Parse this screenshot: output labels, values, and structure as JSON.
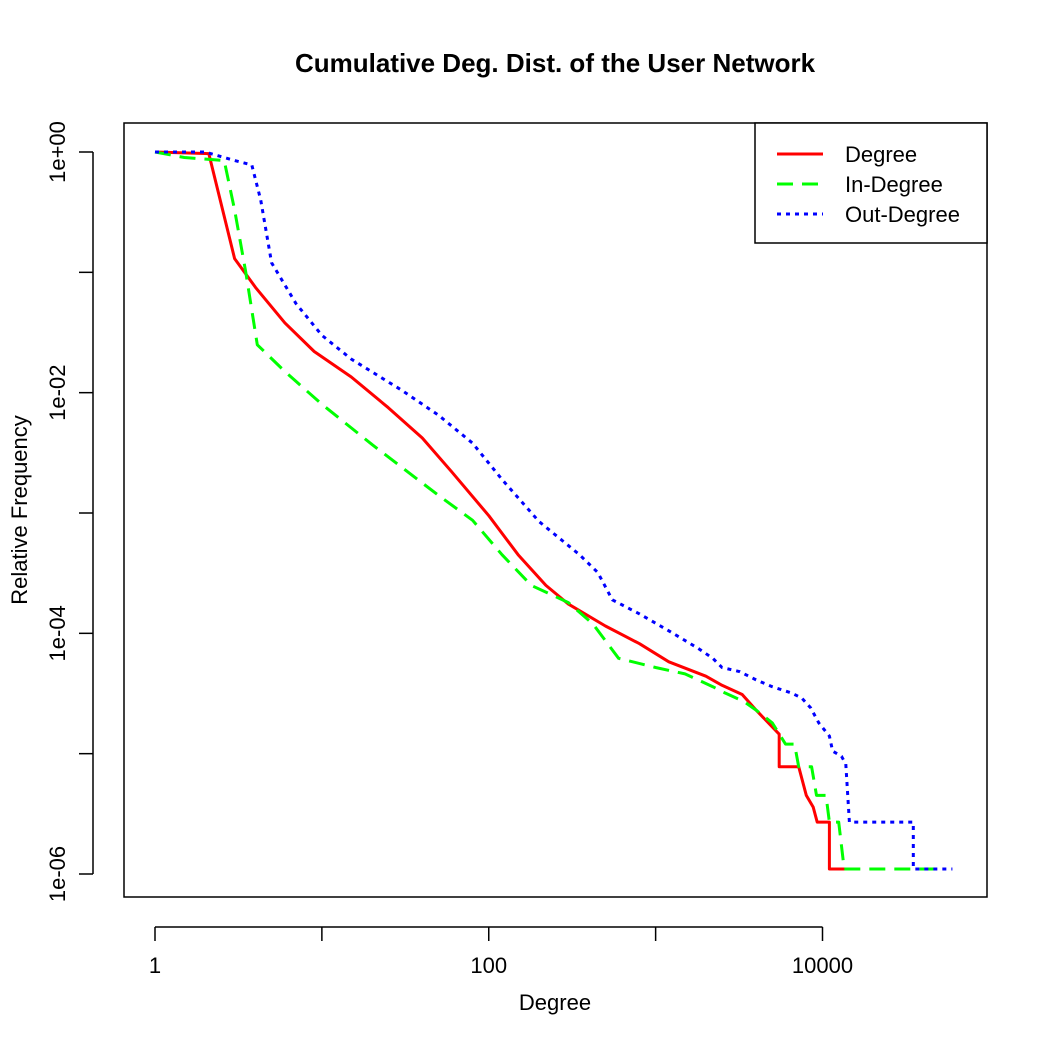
{
  "chart_data": {
    "type": "line",
    "title": "Cumulative Deg. Dist. of the User Network",
    "xlabel": "Degree",
    "ylabel": "Relative Frequency",
    "xscale": "log",
    "yscale": "log",
    "xlim": [
      1,
      80000
    ],
    "ylim": [
      6e-07,
      2
    ],
    "x_ticks": [
      {
        "value": 1,
        "label": "1"
      },
      {
        "value": 100,
        "label": "100"
      },
      {
        "value": 10000,
        "label": "10000"
      }
    ],
    "y_ticks": [
      {
        "value": 1,
        "label": "1e+00"
      },
      {
        "value": 0.01,
        "label": "1e-02"
      },
      {
        "value": 0.0001,
        "label": "1e-04"
      },
      {
        "value": 1e-06,
        "label": "1e-06"
      }
    ],
    "grid": false,
    "legend_position": "top-right",
    "series": [
      {
        "name": "Degree",
        "color": "#ff0000",
        "line_style": "solid",
        "points": [
          [
            1,
            1
          ],
          [
            2.1,
            0.97
          ],
          [
            3,
            0.13
          ],
          [
            4,
            0.075
          ],
          [
            6,
            0.038
          ],
          [
            9,
            0.022
          ],
          [
            15,
            0.0135
          ],
          [
            25,
            0.0075
          ],
          [
            40,
            0.0042
          ],
          [
            60,
            0.0022
          ],
          [
            100,
            0.00095
          ],
          [
            150,
            0.00045
          ],
          [
            220,
            0.00025
          ],
          [
            300,
            0.000175
          ],
          [
            500,
            0.000115
          ],
          [
            800,
            8.2e-05
          ],
          [
            1200,
            5.8e-05
          ],
          [
            2000,
            4.4e-05
          ],
          [
            2500,
            3.7e-05
          ],
          [
            3300,
            3.1e-05
          ],
          [
            4000,
            2.3e-05
          ],
          [
            5500,
            1.45e-05
          ],
          [
            5500,
            7.8e-06
          ],
          [
            7200,
            7.8e-06
          ],
          [
            8000,
            4.5e-06
          ],
          [
            8800,
            3.6e-06
          ],
          [
            9300,
            2.7e-06
          ],
          [
            11000,
            2.7e-06
          ],
          [
            11000,
            1.1e-06
          ],
          [
            14000,
            1.1e-06
          ]
        ]
      },
      {
        "name": "In-Degree",
        "color": "#00ff00",
        "line_style": "dashed",
        "points": [
          [
            1,
            1
          ],
          [
            1.5,
            0.9
          ],
          [
            2.6,
            0.85
          ],
          [
            3,
            0.33
          ],
          [
            3.5,
            0.1
          ],
          [
            4.1,
            0.025
          ],
          [
            6,
            0.015
          ],
          [
            10,
            0.008
          ],
          [
            20,
            0.0037
          ],
          [
            50,
            0.0014
          ],
          [
            80,
            0.00087
          ],
          [
            120,
            0.00045
          ],
          [
            180,
            0.00025
          ],
          [
            300,
            0.00018
          ],
          [
            420,
            0.00012
          ],
          [
            600,
            6.2e-05
          ],
          [
            1000,
            5.2e-05
          ],
          [
            1500,
            4.6e-05
          ],
          [
            2200,
            3.6e-05
          ],
          [
            2600,
            3.2e-05
          ],
          [
            3400,
            2.7e-05
          ],
          [
            4000,
            2.3e-05
          ],
          [
            5000,
            1.8e-05
          ],
          [
            6000,
            1.2e-05
          ],
          [
            6800,
            1.2e-05
          ],
          [
            7200,
            7.8e-06
          ],
          [
            8600,
            7.8e-06
          ],
          [
            9200,
            4.5e-06
          ],
          [
            10500,
            4.5e-06
          ],
          [
            11000,
            2.7e-06
          ],
          [
            12500,
            2.7e-06
          ],
          [
            13500,
            1.1e-06
          ],
          [
            50000,
            1.1e-06
          ]
        ]
      },
      {
        "name": "Out-Degree",
        "color": "#0000ff",
        "line_style": "dotted",
        "points": [
          [
            1,
            1
          ],
          [
            2,
            1
          ],
          [
            3,
            0.85
          ],
          [
            3.8,
            0.78
          ],
          [
            4.3,
            0.4
          ],
          [
            5,
            0.12
          ],
          [
            7,
            0.055
          ],
          [
            10,
            0.03
          ],
          [
            15,
            0.019
          ],
          [
            30,
            0.0105
          ],
          [
            50,
            0.0065
          ],
          [
            80,
            0.0038
          ],
          [
            120,
            0.0019
          ],
          [
            200,
            0.00085
          ],
          [
            350,
            0.00045
          ],
          [
            450,
            0.00032
          ],
          [
            550,
            0.00019
          ],
          [
            800,
            0.000145
          ],
          [
            1200,
            0.000105
          ],
          [
            1800,
            7.5e-05
          ],
          [
            2200,
            6.2e-05
          ],
          [
            2500,
            5.2e-05
          ],
          [
            3200,
            4.8e-05
          ],
          [
            4000,
            4.1e-05
          ],
          [
            5000,
            3.6e-05
          ],
          [
            6500,
            3.2e-05
          ],
          [
            7500,
            2.9e-05
          ],
          [
            8500,
            2.4e-05
          ],
          [
            9500,
            1.8e-05
          ],
          [
            11000,
            1.4e-05
          ],
          [
            11500,
            1.05e-05
          ],
          [
            13000,
            9.5e-06
          ],
          [
            13800,
            8.2e-06
          ],
          [
            14500,
            2.7e-06
          ],
          [
            35000,
            2.7e-06
          ],
          [
            35000,
            1.1e-06
          ],
          [
            60000,
            1.1e-06
          ]
        ]
      }
    ]
  }
}
